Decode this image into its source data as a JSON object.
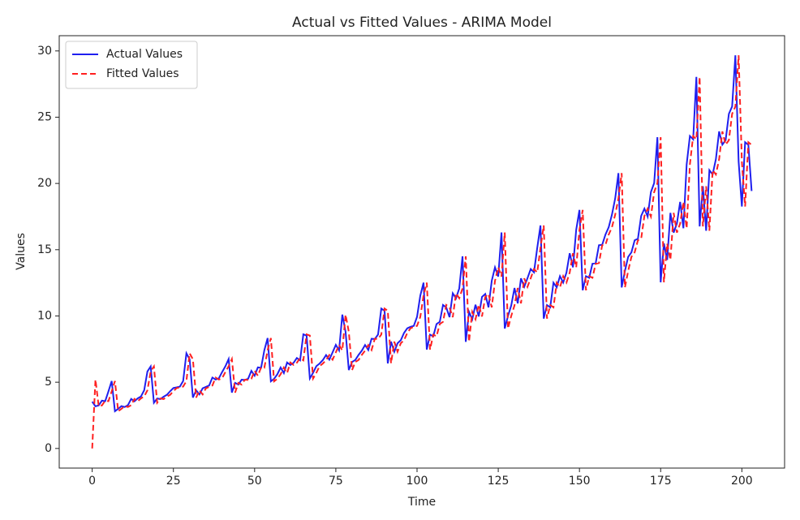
{
  "chart_data": {
    "type": "line",
    "title": "Actual vs Fitted Values - ARIMA Model",
    "x_label": "Time",
    "y_label": "Values",
    "xlim": [
      -10.15,
      213.15
    ],
    "ylim": [
      -1.48,
      31.15
    ],
    "xticks": [
      0,
      25,
      50,
      75,
      100,
      125,
      150,
      175,
      200
    ],
    "yticks": [
      0,
      5,
      10,
      15,
      20,
      25,
      30
    ],
    "legend": "upper left",
    "series": [
      {
        "name": "Actual Values",
        "color": "#1f1fef",
        "dash": "solid",
        "values": [
          3.53,
          3.18,
          3.25,
          3.61,
          3.57,
          4.31,
          5.09,
          2.81,
          2.99,
          3.2,
          3.13,
          3.27,
          3.74,
          3.56,
          3.78,
          3.92,
          4.39,
          5.81,
          6.19,
          3.45,
          3.77,
          3.73,
          3.91,
          4.05,
          4.32,
          4.56,
          4.61,
          4.67,
          5.09,
          7.18,
          6.73,
          3.84,
          4.39,
          4.08,
          4.54,
          4.65,
          4.75,
          5.35,
          5.2,
          5.3,
          5.77,
          6.2,
          6.75,
          4.22,
          4.95,
          4.82,
          5.19,
          5.17,
          5.26,
          5.86,
          5.49,
          6.12,
          6.09,
          7.42,
          8.33,
          5.07,
          5.26,
          5.6,
          6.11,
          5.69,
          6.49,
          6.3,
          6.47,
          6.83,
          6.65,
          8.61,
          8.52,
          5.28,
          5.71,
          6.21,
          6.41,
          6.67,
          7.05,
          6.7,
          7.25,
          7.82,
          7.4,
          10.1,
          8.8,
          5.92,
          6.53,
          6.68,
          7.06,
          7.38,
          7.81,
          7.43,
          8.28,
          8.26,
          8.6,
          10.56,
          10.39,
          6.42,
          8.06,
          7.3,
          7.94,
          8.17,
          8.72,
          9.07,
          9.18,
          9.25,
          9.93,
          11.53,
          12.51,
          7.46,
          8.59,
          8.47,
          9.39,
          9.56,
          10.83,
          10.64,
          9.91,
          11.71,
          11.34,
          12.08,
          14.5,
          8.05,
          10.31,
          9.75,
          10.85,
          9.96,
          11.44,
          11.66,
          10.65,
          12.65,
          13.67,
          12.97,
          16.3,
          9.05,
          10.0,
          10.79,
          12.11,
          10.95,
          12.84,
          12.2,
          12.85,
          13.54,
          13.29,
          15.13,
          16.83,
          9.8,
          10.82,
          10.65,
          12.51,
          12.16,
          13.0,
          12.52,
          13.27,
          14.73,
          13.67,
          16.5,
          18.0,
          11.94,
          13.0,
          12.88,
          13.94,
          13.99,
          15.34,
          15.37,
          16.14,
          16.69,
          17.64,
          18.87,
          20.78,
          12.15,
          13.4,
          14.46,
          14.8,
          15.71,
          15.83,
          17.55,
          18.1,
          17.5,
          19.35,
          20.03,
          23.49,
          12.54,
          15.47,
          14.23,
          17.78,
          16.29,
          16.98,
          18.61,
          16.62,
          21.43,
          23.58,
          23.33,
          28.04,
          16.76,
          19.79,
          16.43,
          21.0,
          20.68,
          21.83,
          23.93,
          22.93,
          23.26,
          25.25,
          25.81,
          29.67,
          21.65,
          18.26,
          23.11,
          22.91,
          19.43
        ]
      },
      {
        "name": "Fitted Values",
        "color": "#ff2020",
        "dash": "dashed",
        "values": [
          0,
          5.2,
          3.18,
          3.25,
          3.61,
          3.57,
          4.31,
          5.09,
          2.81,
          2.99,
          3.2,
          3.13,
          3.27,
          3.74,
          3.56,
          3.78,
          3.92,
          4.39,
          5.81,
          6.19,
          3.45,
          3.77,
          3.73,
          3.91,
          4.05,
          4.32,
          4.56,
          4.61,
          4.67,
          5.09,
          7.18,
          6.73,
          3.84,
          4.39,
          4.08,
          4.54,
          4.65,
          4.75,
          5.35,
          5.2,
          5.3,
          5.77,
          6.2,
          6.75,
          4.22,
          4.95,
          4.82,
          5.19,
          5.17,
          5.26,
          5.86,
          5.49,
          6.12,
          6.09,
          7.42,
          8.33,
          5.07,
          5.26,
          5.6,
          6.11,
          5.69,
          6.49,
          6.3,
          6.47,
          6.83,
          6.65,
          8.61,
          8.52,
          5.28,
          5.71,
          6.21,
          6.41,
          6.67,
          7.05,
          6.7,
          7.25,
          7.82,
          7.4,
          10.1,
          8.8,
          5.92,
          6.53,
          6.68,
          7.06,
          7.38,
          7.81,
          7.43,
          8.28,
          8.26,
          8.6,
          10.56,
          10.39,
          6.42,
          8.06,
          7.3,
          7.94,
          8.17,
          8.72,
          9.07,
          9.18,
          9.25,
          9.93,
          11.53,
          12.51,
          7.46,
          8.59,
          8.47,
          9.39,
          9.56,
          10.83,
          10.64,
          9.91,
          11.71,
          11.34,
          12.08,
          14.5,
          8.05,
          10.31,
          9.75,
          10.85,
          9.96,
          11.44,
          11.66,
          10.65,
          12.65,
          13.67,
          12.97,
          16.3,
          9.05,
          10.0,
          10.79,
          12.11,
          10.95,
          12.84,
          12.2,
          12.85,
          13.54,
          13.29,
          15.13,
          16.83,
          9.8,
          10.82,
          10.65,
          12.51,
          12.16,
          13.0,
          12.52,
          13.27,
          14.73,
          13.67,
          16.5,
          18.0,
          11.94,
          13.0,
          12.88,
          13.94,
          13.99,
          15.34,
          15.37,
          16.14,
          16.69,
          17.64,
          18.87,
          20.78,
          12.15,
          13.4,
          14.46,
          14.8,
          15.71,
          15.83,
          17.55,
          18.1,
          17.5,
          19.35,
          20.03,
          23.49,
          12.54,
          15.47,
          14.23,
          17.78,
          16.29,
          16.98,
          18.61,
          16.62,
          21.43,
          23.58,
          23.33,
          28.04,
          16.76,
          19.79,
          16.43,
          21.0,
          20.68,
          21.83,
          23.93,
          22.93,
          23.26,
          25.25,
          25.81,
          29.67,
          21.65,
          18.26,
          23.11,
          22.91
        ]
      }
    ]
  }
}
